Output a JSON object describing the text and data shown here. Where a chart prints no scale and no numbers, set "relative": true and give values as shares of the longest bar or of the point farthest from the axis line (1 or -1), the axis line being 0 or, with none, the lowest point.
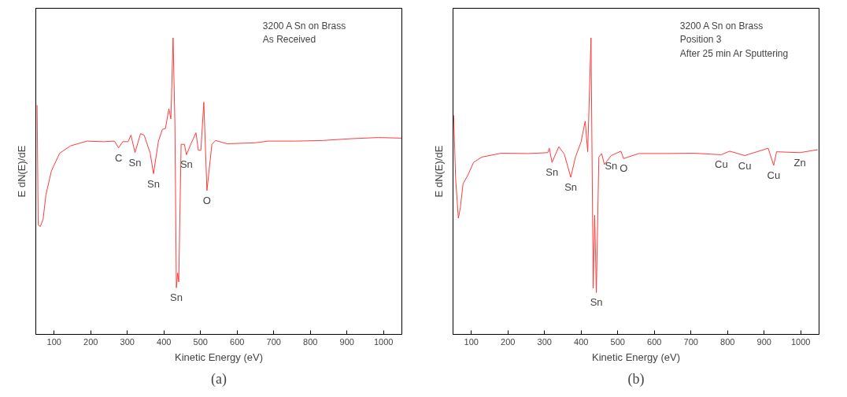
{
  "chart_data": [
    {
      "type": "line",
      "relative": true,
      "xlabel": "Kinetic Energy (eV)",
      "ylabel": "E dN(E)/dE",
      "xlim": [
        50,
        1050
      ],
      "xticks": [
        100,
        200,
        300,
        400,
        500,
        600,
        700,
        800,
        900,
        1000
      ],
      "grid": false,
      "marker": "none",
      "line_style": "solid",
      "series": [
        {
          "color": "#ff3b3b",
          "x": [
            53.5,
            56.5,
            62.5,
            70,
            77.5,
            92.5,
            115,
            145,
            190,
            235,
            265,
            276,
            287.5,
            302,
            310,
            321,
            336,
            346,
            362.5,
            371.5,
            385,
            396,
            404,
            413.5,
            419,
            425,
            430,
            434,
            437.5,
            440.5,
            447,
            456,
            461.5,
            475,
            487.5,
            494,
            501,
            509,
            517.5,
            531,
            541,
            572.5,
            647.5,
            685,
            760,
            835,
            910,
            985,
            1049
          ],
          "values": [
            0.773,
            0.369,
            0.364,
            0.389,
            0.47,
            0.551,
            0.611,
            0.636,
            0.652,
            0.65,
            0.652,
            0.629,
            0.65,
            0.65,
            0.672,
            0.613,
            0.677,
            0.672,
            0.611,
            0.542,
            0.652,
            0.692,
            0.694,
            0.761,
            0.727,
            1.0,
            0.712,
            0.157,
            0.207,
            0.177,
            0.641,
            0.641,
            0.606,
            0.646,
            0.68,
            0.621,
            0.621,
            0.783,
            0.485,
            0.641,
            0.654,
            0.643,
            0.646,
            0.652,
            0.652,
            0.654,
            0.66,
            0.664,
            0.662
          ]
        }
      ],
      "annotations": [
        "3200 A Sn on Brass\nAs Received",
        "(a)",
        {
          "text": "C",
          "x": 276,
          "y": 0.629
        },
        {
          "text": "Sn",
          "x": 321,
          "y": 0.613
        },
        {
          "text": "Sn",
          "x": 371.5,
          "y": 0.542
        },
        {
          "text": "Sn",
          "x": 434,
          "y": 0.157
        },
        {
          "text": "Sn",
          "x": 461.5,
          "y": 0.606
        },
        {
          "text": "O",
          "x": 517.5,
          "y": 0.485
        }
      ]
    },
    {
      "type": "line",
      "relative": true,
      "xlabel": "Kinetic Energy (eV)",
      "ylabel": "E dN(E)/dE",
      "xlim": [
        50,
        1050
      ],
      "xticks": [
        100,
        200,
        300,
        400,
        500,
        600,
        700,
        800,
        900,
        1000
      ],
      "grid": false,
      "marker": "none",
      "line_style": "solid",
      "series": [
        {
          "color": "#ff3b3b",
          "x": [
            51.8,
            57,
            64.6,
            70,
            77.4,
            91,
            106,
            128.6,
            181,
            256.5,
            309,
            313,
            320.5,
            339,
            354,
            371.7,
            384.5,
            399.5,
            411,
            418,
            427,
            433,
            437,
            441.6,
            448.4,
            456,
            463.5,
            482,
            508.6,
            516,
            557.5,
            632.8,
            708,
            783,
            806,
            847,
            911,
            926,
            934,
            997.7,
            1046.6
          ],
          "values": [
            0.739,
            0.528,
            0.392,
            0.427,
            0.508,
            0.538,
            0.58,
            0.598,
            0.611,
            0.61,
            0.613,
            0.628,
            0.58,
            0.633,
            0.608,
            0.53,
            0.598,
            0.648,
            0.719,
            0.616,
            1.0,
            0.156,
            0.402,
            0.141,
            0.598,
            0.61,
            0.573,
            0.603,
            0.618,
            0.593,
            0.61,
            0.61,
            0.611,
            0.606,
            0.618,
            0.603,
            0.628,
            0.57,
            0.616,
            0.613,
            0.623
          ]
        }
      ],
      "annotations": [
        "3200 A Sn on Brass\nPosition 3\nAfter 25 min Ar Sputtering",
        "(b)",
        {
          "text": "Sn",
          "x": 320.5,
          "y": 0.58
        },
        {
          "text": "Sn",
          "x": 371.7,
          "y": 0.53
        },
        {
          "text": "Sn",
          "x": 441.6,
          "y": 0.141
        },
        {
          "text": "Sn",
          "x": 482,
          "y": 0.603
        },
        {
          "text": "O",
          "x": 516,
          "y": 0.593
        },
        {
          "text": "Cu",
          "x": 783,
          "y": 0.606
        },
        {
          "text": "Cu",
          "x": 847,
          "y": 0.603
        },
        {
          "text": "Cu",
          "x": 926,
          "y": 0.57
        },
        {
          "text": "Zn",
          "x": 997.7,
          "y": 0.613
        }
      ]
    }
  ]
}
